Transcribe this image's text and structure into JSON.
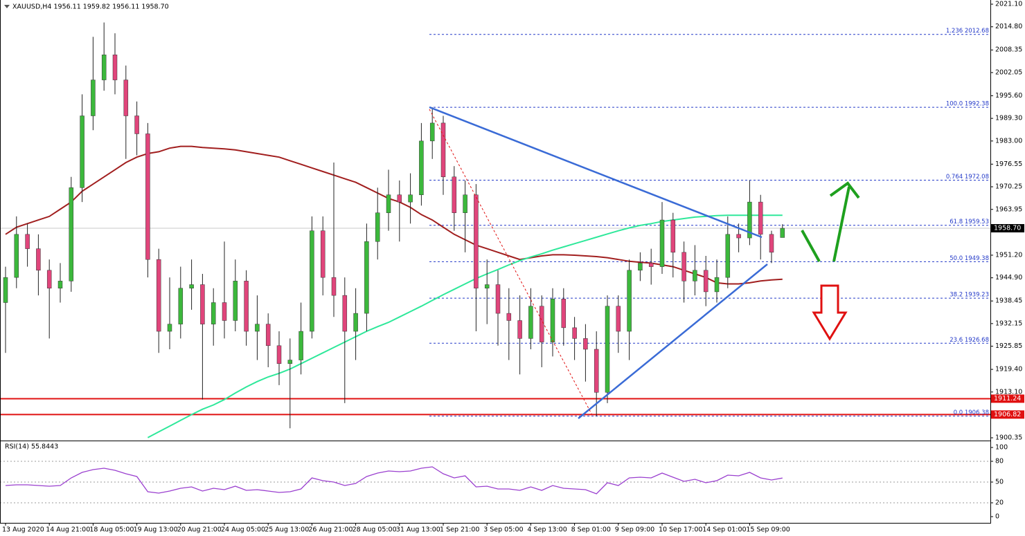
{
  "chart_data": {
    "type": "candlestick",
    "title": "XAUUSD,H4  1956.11 1959.82 1956.11 1958.70",
    "categories": [
      "13 Aug 2020",
      null,
      null,
      null,
      "14 Aug 21:00",
      null,
      null,
      null,
      "18 Aug 05:00",
      null,
      null,
      null,
      "19 Aug 13:00",
      null,
      null,
      null,
      "20 Aug 21:00",
      null,
      null,
      null,
      "24 Aug 05:00",
      null,
      null,
      null,
      "25 Aug 13:00",
      null,
      null,
      null,
      "26 Aug 21:00",
      null,
      null,
      null,
      "28 Aug 05:00",
      null,
      null,
      null,
      "31 Aug 13:00",
      null,
      null,
      null,
      "1 Sep 21:00",
      null,
      null,
      null,
      "3 Sep 05:00",
      null,
      null,
      null,
      "4 Sep 13:00",
      null,
      null,
      null,
      "8 Sep 01:00",
      null,
      null,
      null,
      "9 Sep 09:00",
      null,
      null,
      null,
      "10 Sep 17:00",
      null,
      null,
      null,
      "14 Sep 01:00",
      null,
      null,
      null,
      "15 Sep 09:00",
      null,
      null,
      null
    ],
    "open": [
      1938,
      1945,
      1957,
      1953,
      1947,
      1942,
      1944,
      1970,
      1990,
      2000,
      2007,
      2000,
      1990,
      1985,
      1950,
      1930,
      1932,
      1942,
      1943,
      1932,
      1938,
      1933,
      1944,
      1930,
      1932,
      1926,
      1921,
      1922,
      1930,
      1958,
      1945,
      1940,
      1930,
      1935,
      1955,
      1963,
      1968,
      1966,
      1968,
      1983,
      1988,
      1973,
      1963,
      1968,
      1942,
      1943,
      1935,
      1933,
      1928,
      1937,
      1927,
      1939,
      1931,
      1928,
      1925,
      1913,
      1937,
      1930,
      1947,
      1949,
      1948,
      1961,
      1952,
      1944,
      1947,
      1941,
      1945,
      1957,
      1956,
      1966,
      1957,
      1956.11
    ],
    "high": [
      1948,
      1962,
      1960,
      1957,
      1950,
      1949,
      1973,
      1996,
      2012,
      2016,
      2013,
      2004,
      1994,
      1988,
      1953,
      1945,
      1948,
      1950,
      1946,
      1942,
      1955,
      1950,
      1947,
      1940,
      1935,
      1930,
      1928,
      1938,
      1962,
      1962,
      1977,
      1945,
      1942,
      1960,
      1970,
      1975,
      1972,
      1974,
      1988,
      1992.4,
      1990,
      1976,
      1972,
      1971,
      1950,
      1947,
      1942,
      1940,
      1942,
      1940,
      1942,
      1942,
      1934,
      1932,
      1930,
      1940,
      1940,
      1950,
      1952,
      1953,
      1966,
      1963,
      1955,
      1954,
      1951,
      1950,
      1962,
      1960,
      1972,
      1968,
      1958,
      1959.82
    ],
    "low": [
      1924,
      1942,
      1948,
      1940,
      1928,
      1938,
      1941,
      1966,
      1986,
      1997,
      1996,
      1978,
      1979,
      1945,
      1924,
      1925,
      1928,
      1936,
      1911,
      1926,
      1928,
      1930,
      1926,
      1922,
      1920,
      1915,
      1903,
      1918,
      1928,
      1940,
      1934,
      1910,
      1922,
      1930,
      1950,
      1958,
      1955,
      1960,
      1965,
      1978,
      1968,
      1958,
      1952,
      1930,
      1932,
      1926,
      1922,
      1918,
      1925,
      1920,
      1923,
      1926,
      1922,
      1916,
      1906.4,
      1910,
      1924,
      1922,
      1944,
      1943,
      1946,
      1945,
      1938,
      1940,
      1937,
      1938,
      1942,
      1952,
      1954,
      1950,
      1949,
      1956.11
    ],
    "close": [
      1945,
      1957,
      1953,
      1947,
      1942,
      1944,
      1970,
      1990,
      2000,
      2007,
      2000,
      1990,
      1985,
      1950,
      1930,
      1932,
      1942,
      1943,
      1932,
      1938,
      1933,
      1944,
      1930,
      1932,
      1926,
      1921,
      1922,
      1930,
      1958,
      1945,
      1940,
      1930,
      1935,
      1955,
      1963,
      1968,
      1966,
      1968,
      1983,
      1988,
      1973,
      1963,
      1968,
      1942,
      1943,
      1935,
      1933,
      1928,
      1937,
      1927,
      1939,
      1931,
      1928,
      1925,
      1913,
      1937,
      1930,
      1947,
      1949,
      1948,
      1961,
      1952,
      1944,
      1947,
      1941,
      1945,
      1957,
      1956,
      1966,
      1957,
      1952,
      1958.7
    ],
    "up_color": "#3cb83c",
    "down_color": "#e0457b",
    "lines": [
      {
        "color": "#a11e1e",
        "values": [
          1957,
          1959,
          1960,
          1961,
          1962,
          1964,
          1966,
          1969,
          1971,
          1973,
          1975,
          1977,
          1978.5,
          1979.5,
          1980,
          1981,
          1981.5,
          1981.5,
          1981.2,
          1981,
          1980.8,
          1980.5,
          1980,
          1979.5,
          1979,
          1978.5,
          1977.5,
          1976.5,
          1975.5,
          1974.5,
          1973.5,
          1972.5,
          1971.5,
          1970,
          1968.5,
          1967,
          1966,
          1964.5,
          1962.5,
          1961,
          1959,
          1957,
          1955.5,
          1954,
          1953,
          1952,
          1951,
          1950,
          1950.5,
          1951,
          1951.3,
          1951.3,
          1951.2,
          1951,
          1950.8,
          1950.5,
          1950,
          1949.5,
          1949.2,
          1949,
          1948.5,
          1948,
          1947,
          1946,
          1945,
          1943.5,
          1943.2,
          1943.2,
          1943.5,
          1944,
          1944.3,
          1944.5
        ]
      },
      {
        "color": "#2ee89a",
        "values": [
          null,
          null,
          null,
          null,
          null,
          null,
          null,
          null,
          null,
          null,
          null,
          null,
          null,
          1900.4,
          1902,
          1903.6,
          1905.2,
          1906.8,
          1908.3,
          1909.5,
          1911,
          1912.8,
          1914.5,
          1916,
          1917.3,
          1918.3,
          1919.5,
          1921,
          1922.5,
          1924,
          1925.5,
          1927,
          1928.5,
          1930,
          1931.3,
          1932.5,
          1934,
          1935.5,
          1937,
          1938.6,
          1940.2,
          1941.7,
          1943.2,
          1944.7,
          1946,
          1947.2,
          1948.5,
          1949.7,
          1950.7,
          1951.6,
          1952.6,
          1953.5,
          1954.4,
          1955.3,
          1956.2,
          1957.1,
          1958,
          1958.8,
          1959.5,
          1960,
          1960.6,
          1961,
          1961.4,
          1961.8,
          1962,
          1962.2,
          1962.3,
          1962.3,
          1962.3,
          1962.3,
          1962.3,
          1962.3
        ]
      }
    ],
    "ylim": [
      1899.77,
      2022.26
    ],
    "yticks": [
      {
        "value": 2021.1,
        "label": "2021.10"
      },
      {
        "value": 2014.8,
        "label": "2014.80"
      },
      2008.35,
      2002.05,
      {
        "value": 1995.6,
        "label": "1995.60"
      },
      {
        "value": 1989.3,
        "label": "1989.30"
      },
      {
        "value": 1983,
        "label": "1983.00"
      },
      1976.55,
      1970.25,
      1963.95,
      {
        "value": 1951.2,
        "label": "1951.20"
      },
      {
        "value": 1944.9,
        "label": "1944.90"
      },
      1938.45,
      1932.15,
      1925.85,
      {
        "value": 1919.4,
        "label": "1919.40"
      },
      {
        "value": 1913.1,
        "label": "1913.10"
      },
      1900.35
    ],
    "levels": [
      {
        "value": 2012.68,
        "label": "1.236 2012.68"
      },
      {
        "value": 1992.38,
        "label": "100.0 1992.38"
      },
      {
        "value": 1972.08,
        "label": "0.764 1972.08"
      },
      {
        "value": 1959.53,
        "label": "61.8 1959.53"
      },
      {
        "value": 1949.38,
        "label": "50.0 1949.38"
      },
      {
        "value": 1939.23,
        "label": "38.2 1939.23"
      },
      {
        "value": 1926.68,
        "label": "23.6 1926.68"
      },
      {
        "value": 1906.38,
        "label": "0.0 1906.38"
      }
    ],
    "levels_color": "#2238c8",
    "hlines": [
      {
        "value": 1911.24,
        "color": "#e01010"
      },
      {
        "value": 1906.82,
        "color": "#e01010"
      }
    ],
    "last_price": {
      "value": 1958.7,
      "label": "1958.70"
    },
    "rsi": {
      "title": "RSI(14) 55.8443",
      "color": "#9a3fcf",
      "values": [
        45,
        46,
        46,
        45,
        44,
        45,
        56,
        64,
        68,
        70,
        67,
        62,
        58,
        36,
        34,
        37,
        41,
        43,
        37,
        41,
        39,
        44,
        38,
        39,
        37,
        35,
        36,
        40,
        56,
        52,
        50,
        45,
        48,
        58,
        63,
        66,
        65,
        66,
        70,
        72,
        62,
        56,
        59,
        43,
        44,
        40,
        40,
        38,
        43,
        38,
        45,
        41,
        40,
        39,
        33,
        49,
        45,
        56,
        57,
        56,
        63,
        57,
        51,
        54,
        49,
        52,
        60,
        59,
        64,
        56,
        53,
        55.8443
      ],
      "ylim": [
        -9,
        109
      ],
      "yticks": [
        100,
        80,
        50,
        20,
        0
      ],
      "grid_levels": [
        80,
        50,
        20
      ]
    }
  }
}
